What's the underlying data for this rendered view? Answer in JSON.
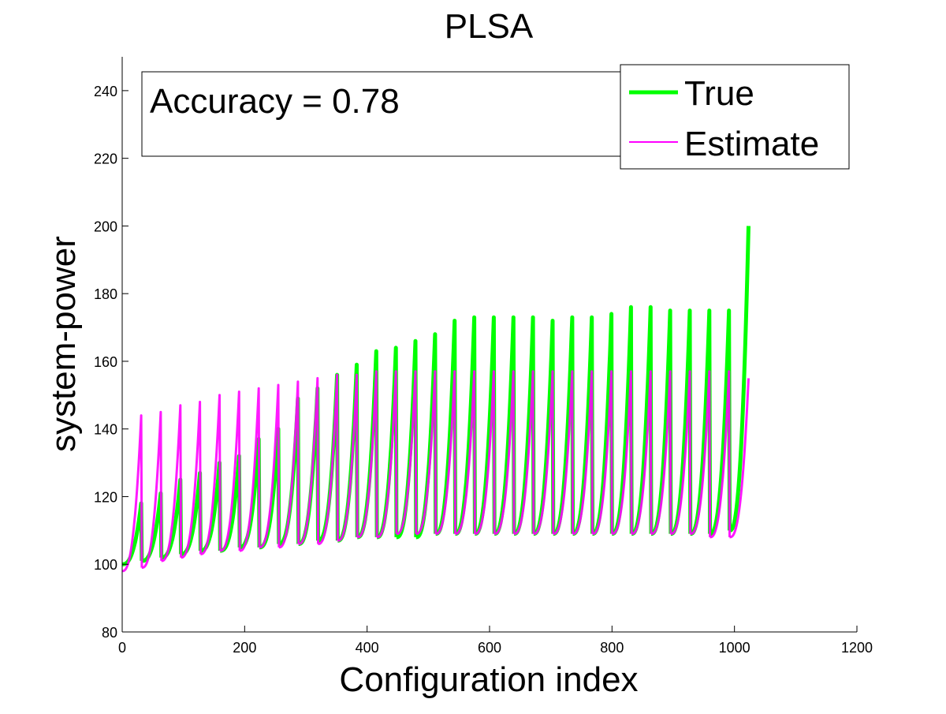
{
  "chart_data": {
    "type": "line",
    "title": "PLSA",
    "xlabel": "Configuration index",
    "ylabel": "system-power",
    "xlim": [
      0,
      1200
    ],
    "ylim": [
      80,
      250
    ],
    "xticks": [
      0,
      200,
      400,
      600,
      800,
      1000,
      1200
    ],
    "yticks": [
      80,
      100,
      120,
      140,
      160,
      180,
      200,
      220,
      240
    ],
    "grid": false,
    "legend_position": "top-right",
    "annotation": "Accuracy = 0.78",
    "period": 32,
    "series": [
      {
        "name": "True",
        "color": "#00ff00",
        "cycle_min": [
          100,
          101,
          102,
          103,
          104,
          104,
          105,
          105,
          106,
          106,
          107,
          107,
          108,
          108,
          108,
          108,
          109,
          109,
          109,
          109,
          109,
          109,
          109,
          109,
          109,
          109,
          109,
          109,
          109,
          109,
          109,
          110
        ],
        "cycle_max": [
          118,
          121,
          125,
          127,
          130,
          132,
          137,
          140,
          149,
          152,
          156,
          159,
          163,
          164,
          166,
          168,
          172,
          173,
          173,
          173,
          173,
          172,
          173,
          173,
          174,
          176,
          176,
          175,
          175,
          175,
          175,
          200
        ]
      },
      {
        "name": "Estimate",
        "color": "#ff00ff",
        "cycle_min": [
          98,
          99,
          101,
          102,
          103,
          104,
          104,
          105,
          105,
          106,
          106,
          107,
          108,
          108,
          109,
          109,
          109,
          109,
          109,
          109,
          109,
          109,
          109,
          109,
          109,
          109,
          109,
          109,
          109,
          109,
          108,
          108
        ],
        "cycle_max": [
          144,
          145,
          147,
          148,
          150,
          151,
          152,
          153,
          154,
          155,
          156,
          156,
          157,
          157,
          157,
          157,
          157,
          157,
          157,
          157,
          157,
          157,
          157,
          157,
          157,
          157,
          157,
          157,
          157,
          157,
          157,
          155
        ]
      }
    ]
  }
}
